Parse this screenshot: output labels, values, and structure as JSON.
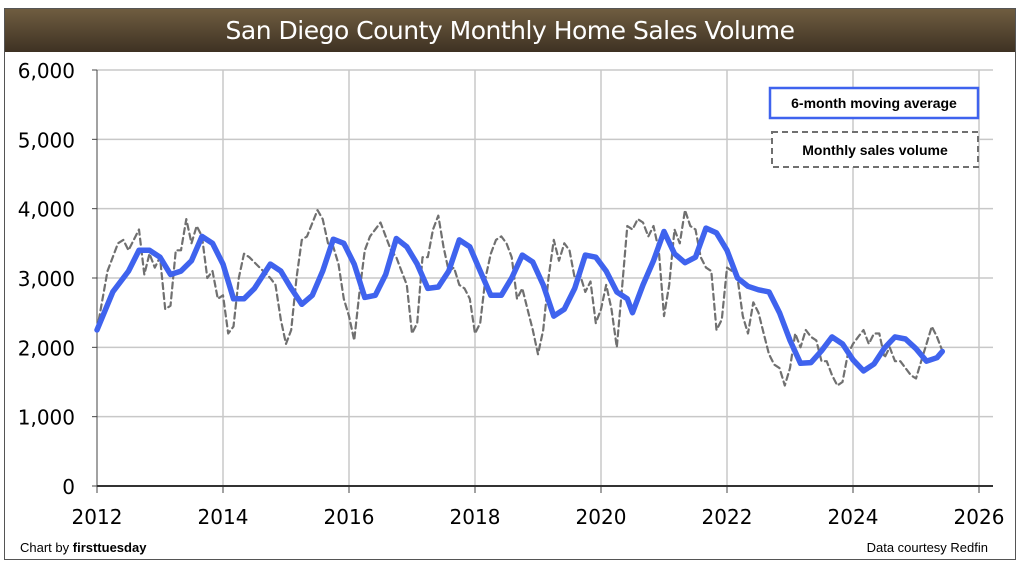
{
  "chart_data": {
    "type": "line",
    "title": "San Diego County Monthly Home Sales Volume",
    "xlim": [
      2012,
      2026
    ],
    "ylim": [
      0,
      6000
    ],
    "x_ticks": [
      "2012",
      "2014",
      "2016",
      "2018",
      "2020",
      "2022",
      "2024",
      "2026"
    ],
    "y_ticks": [
      "0",
      "1,000",
      "2,000",
      "3,000",
      "4,000",
      "5,000",
      "6,000"
    ],
    "grid": true,
    "legend_placement": "top-right",
    "series": [
      {
        "name": "6-month moving average",
        "color": "#3f63ee",
        "style": "solid",
        "points": [
          [
            "2012-01",
            2250
          ],
          [
            "2012-04",
            2800
          ],
          [
            "2012-07",
            3100
          ],
          [
            "2012-09",
            3400
          ],
          [
            "2012-11",
            3400
          ],
          [
            "2013-01",
            3300
          ],
          [
            "2013-03",
            3050
          ],
          [
            "2013-05",
            3100
          ],
          [
            "2013-07",
            3250
          ],
          [
            "2013-09",
            3600
          ],
          [
            "2013-11",
            3500
          ],
          [
            "2014-01",
            3200
          ],
          [
            "2014-03",
            2700
          ],
          [
            "2014-05",
            2700
          ],
          [
            "2014-07",
            2850
          ],
          [
            "2014-10",
            3200
          ],
          [
            "2014-12",
            3100
          ],
          [
            "2015-02",
            2850
          ],
          [
            "2015-04",
            2620
          ],
          [
            "2015-06",
            2750
          ],
          [
            "2015-08",
            3100
          ],
          [
            "2015-10",
            3560
          ],
          [
            "2015-12",
            3500
          ],
          [
            "2016-02",
            3200
          ],
          [
            "2016-04",
            2720
          ],
          [
            "2016-06",
            2750
          ],
          [
            "2016-08",
            3050
          ],
          [
            "2016-10",
            3570
          ],
          [
            "2016-12",
            3450
          ],
          [
            "2017-02",
            3200
          ],
          [
            "2017-04",
            2850
          ],
          [
            "2017-06",
            2870
          ],
          [
            "2017-08",
            3100
          ],
          [
            "2017-10",
            3550
          ],
          [
            "2017-12",
            3450
          ],
          [
            "2018-02",
            3100
          ],
          [
            "2018-04",
            2750
          ],
          [
            "2018-06",
            2750
          ],
          [
            "2018-08",
            3000
          ],
          [
            "2018-10",
            3330
          ],
          [
            "2018-12",
            3230
          ],
          [
            "2019-02",
            2900
          ],
          [
            "2019-04",
            2450
          ],
          [
            "2019-06",
            2550
          ],
          [
            "2019-08",
            2850
          ],
          [
            "2019-10",
            3330
          ],
          [
            "2019-12",
            3300
          ],
          [
            "2020-02",
            3100
          ],
          [
            "2020-04",
            2800
          ],
          [
            "2020-06",
            2700
          ],
          [
            "2020-07",
            2500
          ],
          [
            "2020-09",
            2900
          ],
          [
            "2020-11",
            3250
          ],
          [
            "2021-01",
            3670
          ],
          [
            "2021-03",
            3350
          ],
          [
            "2021-05",
            3220
          ],
          [
            "2021-07",
            3300
          ],
          [
            "2021-09",
            3720
          ],
          [
            "2021-11",
            3650
          ],
          [
            "2022-01",
            3400
          ],
          [
            "2022-03",
            3000
          ],
          [
            "2022-05",
            2880
          ],
          [
            "2022-07",
            2830
          ],
          [
            "2022-09",
            2800
          ],
          [
            "2022-11",
            2500
          ],
          [
            "2023-01",
            2100
          ],
          [
            "2023-03",
            1770
          ],
          [
            "2023-05",
            1780
          ],
          [
            "2023-07",
            1950
          ],
          [
            "2023-09",
            2150
          ],
          [
            "2023-11",
            2050
          ],
          [
            "2024-01",
            1820
          ],
          [
            "2024-03",
            1660
          ],
          [
            "2024-05",
            1760
          ],
          [
            "2024-07",
            1990
          ],
          [
            "2024-09",
            2150
          ],
          [
            "2024-11",
            2120
          ],
          [
            "2025-01",
            1980
          ],
          [
            "2025-03",
            1800
          ],
          [
            "2025-05",
            1850
          ],
          [
            "2025-06",
            1940
          ]
        ]
      },
      {
        "name": "Monthly sales volume",
        "color": "#707070",
        "style": "dashed",
        "points": [
          [
            "2012-01",
            2250
          ],
          [
            "2012-03",
            3100
          ],
          [
            "2012-05",
            3500
          ],
          [
            "2012-06",
            3550
          ],
          [
            "2012-07",
            3400
          ],
          [
            "2012-09",
            3700
          ],
          [
            "2012-10",
            3050
          ],
          [
            "2012-11",
            3350
          ],
          [
            "2012-12",
            3150
          ],
          [
            "2013-01",
            3300
          ],
          [
            "2013-02",
            2550
          ],
          [
            "2013-03",
            2600
          ],
          [
            "2013-04",
            3400
          ],
          [
            "2013-05",
            3400
          ],
          [
            "2013-06",
            3850
          ],
          [
            "2013-07",
            3500
          ],
          [
            "2013-08",
            3750
          ],
          [
            "2013-09",
            3600
          ],
          [
            "2013-10",
            3000
          ],
          [
            "2013-11",
            3100
          ],
          [
            "2013-12",
            2700
          ],
          [
            "2014-01",
            2750
          ],
          [
            "2014-02",
            2200
          ],
          [
            "2014-03",
            2300
          ],
          [
            "2014-04",
            3000
          ],
          [
            "2014-05",
            3350
          ],
          [
            "2014-06",
            3300
          ],
          [
            "2014-08",
            3150
          ],
          [
            "2014-10",
            3000
          ],
          [
            "2014-11",
            2900
          ],
          [
            "2014-12",
            2400
          ],
          [
            "2015-01",
            2050
          ],
          [
            "2015-02",
            2250
          ],
          [
            "2015-03",
            3000
          ],
          [
            "2015-04",
            3550
          ],
          [
            "2015-05",
            3600
          ],
          [
            "2015-07",
            3980
          ],
          [
            "2015-08",
            3850
          ],
          [
            "2015-09",
            3500
          ],
          [
            "2015-10",
            3450
          ],
          [
            "2015-11",
            3200
          ],
          [
            "2015-12",
            2700
          ],
          [
            "2016-01",
            2450
          ],
          [
            "2016-02",
            2100
          ],
          [
            "2016-03",
            2800
          ],
          [
            "2016-04",
            3400
          ],
          [
            "2016-05",
            3600
          ],
          [
            "2016-07",
            3800
          ],
          [
            "2016-08",
            3600
          ],
          [
            "2016-09",
            3400
          ],
          [
            "2016-10",
            3300
          ],
          [
            "2016-11",
            3100
          ],
          [
            "2016-12",
            2900
          ],
          [
            "2017-01",
            2200
          ],
          [
            "2017-02",
            2350
          ],
          [
            "2017-03",
            3300
          ],
          [
            "2017-04",
            3300
          ],
          [
            "2017-05",
            3700
          ],
          [
            "2017-06",
            3900
          ],
          [
            "2017-07",
            3450
          ],
          [
            "2017-08",
            3100
          ],
          [
            "2017-09",
            3150
          ],
          [
            "2017-10",
            2900
          ],
          [
            "2017-11",
            2850
          ],
          [
            "2017-12",
            2700
          ],
          [
            "2018-01",
            2200
          ],
          [
            "2018-02",
            2350
          ],
          [
            "2018-03",
            3000
          ],
          [
            "2018-04",
            3350
          ],
          [
            "2018-05",
            3550
          ],
          [
            "2018-06",
            3600
          ],
          [
            "2018-07",
            3500
          ],
          [
            "2018-08",
            3300
          ],
          [
            "2018-09",
            2700
          ],
          [
            "2018-10",
            2850
          ],
          [
            "2018-11",
            2550
          ],
          [
            "2018-12",
            2250
          ],
          [
            "2019-01",
            1900
          ],
          [
            "2019-02",
            2250
          ],
          [
            "2019-03",
            3000
          ],
          [
            "2019-04",
            3550
          ],
          [
            "2019-05",
            3250
          ],
          [
            "2019-06",
            3500
          ],
          [
            "2019-07",
            3400
          ],
          [
            "2019-08",
            3000
          ],
          [
            "2019-09",
            3050
          ],
          [
            "2019-10",
            2800
          ],
          [
            "2019-11",
            2950
          ],
          [
            "2019-12",
            2350
          ],
          [
            "2020-01",
            2550
          ],
          [
            "2020-02",
            2900
          ],
          [
            "2020-03",
            2550
          ],
          [
            "2020-04",
            2000
          ],
          [
            "2020-05",
            2850
          ],
          [
            "2020-06",
            3750
          ],
          [
            "2020-07",
            3700
          ],
          [
            "2020-08",
            3850
          ],
          [
            "2020-09",
            3800
          ],
          [
            "2020-10",
            3600
          ],
          [
            "2020-11",
            3750
          ],
          [
            "2020-12",
            3400
          ],
          [
            "2021-01",
            2450
          ],
          [
            "2021-02",
            2900
          ],
          [
            "2021-03",
            3700
          ],
          [
            "2021-04",
            3500
          ],
          [
            "2021-05",
            3980
          ],
          [
            "2021-06",
            3750
          ],
          [
            "2021-07",
            3700
          ],
          [
            "2021-08",
            3300
          ],
          [
            "2021-09",
            3150
          ],
          [
            "2021-10",
            3100
          ],
          [
            "2021-11",
            2250
          ],
          [
            "2021-12",
            2400
          ],
          [
            "2022-01",
            3150
          ],
          [
            "2022-02",
            3100
          ],
          [
            "2022-03",
            3000
          ],
          [
            "2022-04",
            2450
          ],
          [
            "2022-05",
            2200
          ],
          [
            "2022-06",
            2650
          ],
          [
            "2022-07",
            2500
          ],
          [
            "2022-08",
            2200
          ],
          [
            "2022-09",
            1900
          ],
          [
            "2022-10",
            1750
          ],
          [
            "2022-11",
            1700
          ],
          [
            "2022-12",
            1450
          ],
          [
            "2023-01",
            1700
          ],
          [
            "2023-02",
            2200
          ],
          [
            "2023-03",
            2000
          ],
          [
            "2023-04",
            2250
          ],
          [
            "2023-05",
            2150
          ],
          [
            "2023-06",
            2100
          ],
          [
            "2023-07",
            1800
          ],
          [
            "2023-08",
            1800
          ],
          [
            "2023-09",
            1600
          ],
          [
            "2023-10",
            1450
          ],
          [
            "2023-11",
            1500
          ],
          [
            "2023-12",
            1900
          ],
          [
            "2024-01",
            2050
          ],
          [
            "2024-02",
            2150
          ],
          [
            "2024-03",
            2250
          ],
          [
            "2024-04",
            2050
          ],
          [
            "2024-05",
            2200
          ],
          [
            "2024-06",
            2200
          ],
          [
            "2024-07",
            1850
          ],
          [
            "2024-08",
            2000
          ],
          [
            "2024-09",
            1800
          ],
          [
            "2024-10",
            1800
          ],
          [
            "2024-11",
            1700
          ],
          [
            "2024-12",
            1600
          ],
          [
            "2025-01",
            1550
          ],
          [
            "2025-02",
            1800
          ],
          [
            "2025-03",
            2050
          ],
          [
            "2025-04",
            2300
          ],
          [
            "2025-05",
            2150
          ],
          [
            "2025-06",
            1950
          ]
        ]
      }
    ]
  },
  "footer": {
    "credit_prefix": "Chart by ",
    "credit_brand": "firsttuesday",
    "source": "Data courtesy Redfin"
  }
}
